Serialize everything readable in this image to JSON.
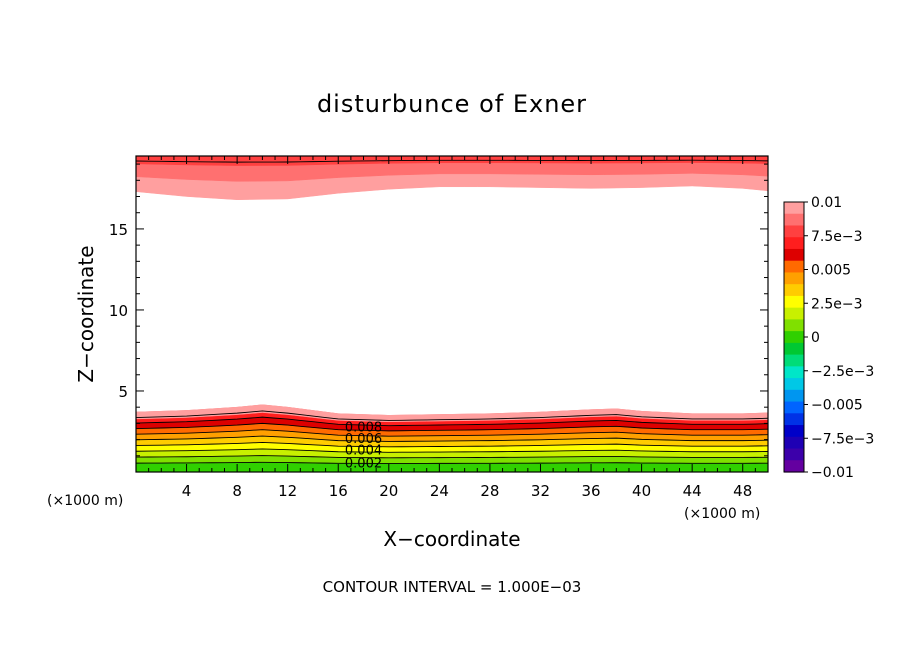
{
  "chart_data": {
    "type": "contour",
    "title": "disturbunce of Exner",
    "xlabel": "X−coordinate",
    "ylabel": "Z−coordinate",
    "x_unit_left": "(×1000 m)",
    "x_unit_right": "(×1000 m)",
    "xlim": [
      0,
      50
    ],
    "ylim": [
      0,
      19.5
    ],
    "x_ticks": [
      4,
      8,
      12,
      16,
      20,
      24,
      28,
      32,
      36,
      40,
      44,
      48
    ],
    "y_ticks": [
      5,
      10,
      15
    ],
    "footer": "CONTOUR INTERVAL = 1.000E−03",
    "contour_interval": 0.001,
    "contour_labels": [
      {
        "text": "0.008",
        "value": 0.008,
        "x": 18,
        "z": 2.8
      },
      {
        "text": "0.006",
        "value": 0.006,
        "x": 18,
        "z": 2.1
      },
      {
        "text": "0.004",
        "value": 0.004,
        "x": 18,
        "z": 1.4
      },
      {
        "text": "0.002",
        "value": 0.002,
        "x": 18,
        "z": 0.6
      }
    ],
    "surface_layer": {
      "description": "Exner disturbance decreasing from ~0.009 near z=0.2 km to 0 at top of layer",
      "top_z": [
        [
          0,
          3.7
        ],
        [
          4,
          3.8
        ],
        [
          8,
          4.0
        ],
        [
          10,
          4.15
        ],
        [
          12,
          4.0
        ],
        [
          16,
          3.6
        ],
        [
          20,
          3.5
        ],
        [
          24,
          3.55
        ],
        [
          28,
          3.6
        ],
        [
          32,
          3.7
        ],
        [
          36,
          3.85
        ],
        [
          38,
          3.9
        ],
        [
          40,
          3.75
        ],
        [
          44,
          3.6
        ],
        [
          48,
          3.6
        ],
        [
          50,
          3.65
        ]
      ]
    },
    "upper_layer": {
      "description": "Exner disturbance increasing from 0 near z~17 km to ~0.01 at top",
      "bottom_z": [
        [
          0,
          17.3
        ],
        [
          4,
          17.0
        ],
        [
          8,
          16.8
        ],
        [
          12,
          16.85
        ],
        [
          16,
          17.2
        ],
        [
          20,
          17.45
        ],
        [
          24,
          17.6
        ],
        [
          28,
          17.6
        ],
        [
          32,
          17.55
        ],
        [
          36,
          17.5
        ],
        [
          40,
          17.55
        ],
        [
          44,
          17.65
        ],
        [
          48,
          17.5
        ],
        [
          50,
          17.35
        ]
      ]
    },
    "colorbar": {
      "labels": [
        "0.01",
        "7.5e−3",
        "0.005",
        "2.5e−3",
        "0",
        "−2.5e−3",
        "−0.005",
        "−7.5e−3",
        "−0.01"
      ],
      "colors": [
        "#ff9f9f",
        "#ff7070",
        "#ff4040",
        "#ff1e1e",
        "#dd0000",
        "#ff6a00",
        "#ffa000",
        "#ffcc00",
        "#ffff00",
        "#c8f000",
        "#80e000",
        "#30d000",
        "#00c832",
        "#00dc78",
        "#00e6c8",
        "#00c8e6",
        "#0096f0",
        "#0064ff",
        "#0032e6",
        "#0000c8",
        "#1e00b4",
        "#3c00aa",
        "#6400a0"
      ]
    },
    "colors": {
      "background": "#ffffff",
      "axis": "#000000"
    }
  }
}
